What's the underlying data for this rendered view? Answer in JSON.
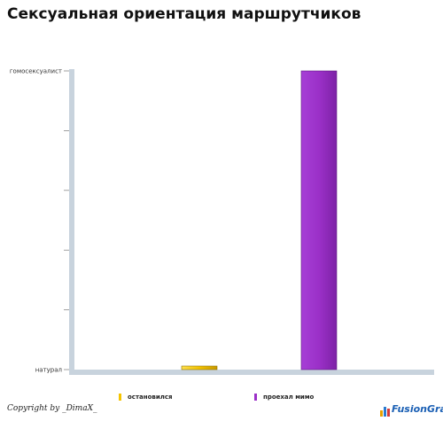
{
  "chart_data": {
    "type": "bar",
    "title": "Сексуальная ориентация маршрутчиков",
    "categories": [
      "остановился",
      "проехал мимо"
    ],
    "values": [
      0,
      1
    ],
    "ylim": [
      0,
      1
    ],
    "yticks": [
      {
        "value": 0,
        "label": "натурал"
      },
      {
        "value": 0.2,
        "label": ""
      },
      {
        "value": 0.4,
        "label": ""
      },
      {
        "value": 0.6,
        "label": ""
      },
      {
        "value": 0.8,
        "label": ""
      },
      {
        "value": 1,
        "label": "гомосексуалист"
      }
    ],
    "colors": [
      "#f5c400",
      "#9b30c8"
    ],
    "legend": [
      "остановился",
      "проехал мимо"
    ],
    "legend_position": "bottom",
    "grid": false
  },
  "footer": {
    "copyright": "Copyright by _DimaX_",
    "logo": "FusionGraph"
  }
}
